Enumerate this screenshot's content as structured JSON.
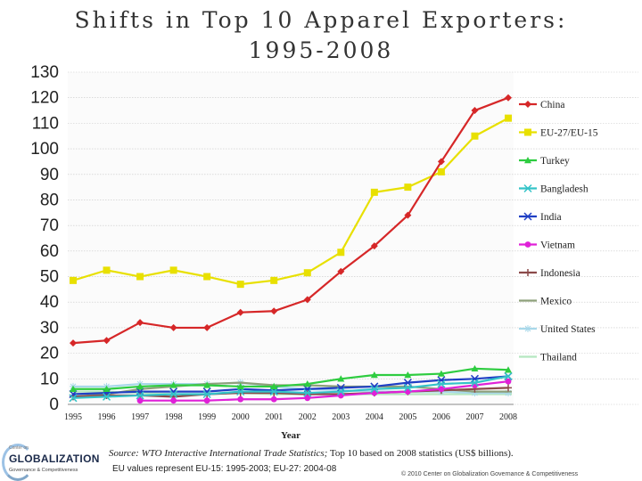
{
  "title_line1": "Shifts in Top 10 Apparel Exporters:",
  "title_line2": "1995-2008",
  "chart_data": {
    "type": "line",
    "title": "Shifts in Top 10 Apparel Exporters: 1995-2008",
    "xlabel": "Year",
    "ylabel": "",
    "ylim": [
      0,
      130
    ],
    "yticks": [
      0,
      10,
      20,
      30,
      40,
      50,
      60,
      70,
      80,
      90,
      100,
      110,
      120,
      130
    ],
    "x": [
      "1995",
      "1996",
      "1997",
      "1998",
      "1999",
      "2000",
      "2001",
      "2002",
      "2003",
      "2004",
      "2005",
      "2006",
      "2007",
      "2008"
    ],
    "legend_position": "right",
    "series": [
      {
        "name": "China",
        "color": "#d62728",
        "marker": "diamond",
        "values": [
          24,
          25,
          32,
          30,
          30,
          36,
          36.5,
          41,
          52,
          62,
          74,
          95,
          115,
          120
        ]
      },
      {
        "name": "EU-27/EU-15",
        "color": "#e8e000",
        "marker": "square",
        "values": [
          48.5,
          52.5,
          50,
          52.5,
          50,
          47,
          48.5,
          51.5,
          59.5,
          83,
          85,
          91,
          105,
          112
        ]
      },
      {
        "name": "Turkey",
        "color": "#2ecc40",
        "marker": "triangle",
        "values": [
          6,
          6,
          7,
          7.5,
          7.5,
          7,
          7,
          8,
          10,
          11.5,
          11.5,
          12,
          14,
          13.5
        ]
      },
      {
        "name": "Bangladesh",
        "color": "#34c3c8",
        "marker": "x",
        "values": [
          2.5,
          3,
          3.5,
          4,
          4,
          5,
          5,
          4.5,
          5,
          6,
          6.5,
          8,
          8.5,
          11
        ]
      },
      {
        "name": "India",
        "color": "#1f3fc4",
        "marker": "x",
        "values": [
          4,
          4.5,
          5,
          5,
          5,
          6,
          5.5,
          6,
          6.5,
          7,
          8.5,
          9.5,
          10,
          11
        ]
      },
      {
        "name": "Vietnam",
        "color": "#e020d8",
        "marker": "circle",
        "values": [
          null,
          null,
          1.5,
          1.5,
          1.5,
          2,
          2,
          2.5,
          3.5,
          4.5,
          5,
          6,
          7.5,
          9
        ]
      },
      {
        "name": "Indonesia",
        "color": "#8b4a4a",
        "marker": "plus",
        "values": [
          3,
          3.5,
          3.5,
          3,
          4,
          4.5,
          4.5,
          4,
          4,
          4.5,
          5,
          5.5,
          6,
          6.5
        ]
      },
      {
        "name": "Mexico",
        "color": "#8ea07a",
        "marker": "line",
        "values": [
          3,
          4,
          6,
          7,
          8,
          8.5,
          7.5,
          7.5,
          7,
          7,
          7,
          6,
          5,
          5
        ]
      },
      {
        "name": "United States",
        "color": "#a8d8ea",
        "marker": "star",
        "values": [
          7,
          7,
          8,
          8,
          8,
          8.5,
          7,
          6,
          5.5,
          5,
          5,
          5,
          4.5,
          4.5
        ]
      },
      {
        "name": "Thailand",
        "color": "#b5e8c0",
        "marker": "line",
        "values": [
          5,
          5,
          4.5,
          4,
          4,
          4.5,
          4,
          4,
          4,
          4,
          4,
          4,
          4,
          4
        ]
      }
    ]
  },
  "footer": {
    "source_label": "Source:",
    "source_italic": "WTO Interactive International Trade Statistics;",
    "source_rest": "Top 10 based on 2008 statistics (US$ billions).",
    "eu_note": "EU values represent EU-15: 1995-2003; EU-27: 2004-08",
    "copyright": "© 2010 Center on Globalization Governance & Competitiveness"
  },
  "logo": {
    "small": "Center on",
    "main": "GLOBALIZATION",
    "sub": "Governance & Competitiveness"
  }
}
